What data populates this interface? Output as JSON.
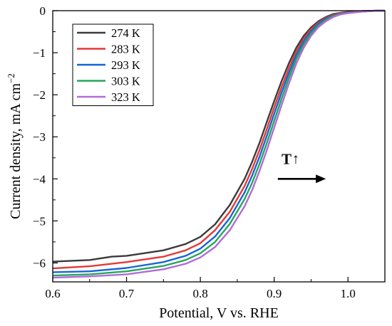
{
  "chart_data": {
    "type": "line",
    "xlabel": "Potential, V vs. RHE",
    "ylabel": "Current density, mA cm",
    "ylabel_sup": "−2",
    "xlim": [
      0.6,
      1.05
    ],
    "ylim": [
      -6.45,
      0
    ],
    "x_ticks": [
      0.6,
      0.7,
      0.8,
      0.9,
      1.0
    ],
    "x_tick_labels": [
      "0.6",
      "0.7",
      "0.8",
      "0.9",
      "1.0"
    ],
    "y_ticks": [
      0,
      -1,
      -2,
      -3,
      -4,
      -5,
      -6
    ],
    "y_tick_labels": [
      "0",
      "−1",
      "−2",
      "−3",
      "−4",
      "−5",
      "−6"
    ],
    "grid": false,
    "legend_position": "top-left",
    "annotation": {
      "text": "T",
      "arrow_up": "↑",
      "at": [
        0.91,
        -3.65
      ]
    },
    "annotation_arrow": {
      "from": [
        0.905,
        -4.0
      ],
      "to": [
        0.97,
        -4.0
      ]
    },
    "series": [
      {
        "name": "274 K",
        "color": "#3b3b3b",
        "x": [
          0.6,
          0.65,
          0.68,
          0.7,
          0.75,
          0.78,
          0.8,
          0.82,
          0.84,
          0.86,
          0.87,
          0.88,
          0.89,
          0.9,
          0.91,
          0.92,
          0.93,
          0.94,
          0.95,
          0.96,
          0.97,
          0.98,
          0.99,
          1.0,
          1.02,
          1.04,
          1.05
        ],
        "y": [
          -5.97,
          -5.93,
          -5.85,
          -5.83,
          -5.7,
          -5.55,
          -5.38,
          -5.08,
          -4.62,
          -4.0,
          -3.6,
          -3.15,
          -2.65,
          -2.15,
          -1.68,
          -1.25,
          -0.88,
          -0.6,
          -0.4,
          -0.25,
          -0.15,
          -0.08,
          -0.05,
          -0.03,
          -0.01,
          0.0,
          0.0
        ]
      },
      {
        "name": "283 K",
        "color": "#e53935",
        "x": [
          0.6,
          0.65,
          0.7,
          0.75,
          0.78,
          0.8,
          0.82,
          0.84,
          0.86,
          0.87,
          0.88,
          0.89,
          0.9,
          0.91,
          0.92,
          0.93,
          0.94,
          0.95,
          0.96,
          0.97,
          0.98,
          0.99,
          1.0,
          1.02,
          1.04,
          1.05
        ],
        "y": [
          -6.13,
          -6.08,
          -5.98,
          -5.85,
          -5.7,
          -5.53,
          -5.22,
          -4.78,
          -4.17,
          -3.77,
          -3.32,
          -2.82,
          -2.3,
          -1.82,
          -1.37,
          -0.97,
          -0.66,
          -0.44,
          -0.28,
          -0.17,
          -0.1,
          -0.06,
          -0.04,
          -0.01,
          0.0,
          0.0
        ]
      },
      {
        "name": "293 K",
        "color": "#1565d8",
        "x": [
          0.6,
          0.65,
          0.7,
          0.75,
          0.78,
          0.8,
          0.82,
          0.84,
          0.86,
          0.87,
          0.88,
          0.89,
          0.9,
          0.91,
          0.92,
          0.93,
          0.94,
          0.95,
          0.96,
          0.97,
          0.98,
          0.99,
          1.0,
          1.02,
          1.04,
          1.05
        ],
        "y": [
          -6.22,
          -6.2,
          -6.12,
          -5.98,
          -5.83,
          -5.66,
          -5.37,
          -4.93,
          -4.32,
          -3.93,
          -3.48,
          -2.98,
          -2.45,
          -1.95,
          -1.48,
          -1.06,
          -0.73,
          -0.49,
          -0.31,
          -0.19,
          -0.12,
          -0.07,
          -0.05,
          -0.02,
          0.0,
          0.0
        ]
      },
      {
        "name": "303 K",
        "color": "#26a65b",
        "x": [
          0.6,
          0.65,
          0.7,
          0.75,
          0.78,
          0.8,
          0.82,
          0.84,
          0.86,
          0.87,
          0.88,
          0.89,
          0.9,
          0.91,
          0.92,
          0.93,
          0.94,
          0.95,
          0.96,
          0.97,
          0.98,
          0.99,
          1.0,
          1.02,
          1.04,
          1.05
        ],
        "y": [
          -6.3,
          -6.27,
          -6.2,
          -6.07,
          -5.93,
          -5.77,
          -5.5,
          -5.07,
          -4.48,
          -4.1,
          -3.65,
          -3.15,
          -2.62,
          -2.1,
          -1.6,
          -1.15,
          -0.8,
          -0.54,
          -0.35,
          -0.22,
          -0.13,
          -0.08,
          -0.05,
          -0.02,
          0.0,
          0.0
        ]
      },
      {
        "name": "323 K",
        "color": "#b36ad9",
        "x": [
          0.6,
          0.65,
          0.7,
          0.75,
          0.78,
          0.8,
          0.82,
          0.84,
          0.86,
          0.87,
          0.88,
          0.89,
          0.9,
          0.91,
          0.92,
          0.93,
          0.94,
          0.95,
          0.96,
          0.97,
          0.98,
          0.99,
          1.0,
          1.02,
          1.04,
          1.05
        ],
        "y": [
          -6.35,
          -6.32,
          -6.27,
          -6.15,
          -6.02,
          -5.87,
          -5.62,
          -5.22,
          -4.65,
          -4.27,
          -3.82,
          -3.32,
          -2.78,
          -2.25,
          -1.73,
          -1.26,
          -0.88,
          -0.6,
          -0.39,
          -0.25,
          -0.15,
          -0.09,
          -0.06,
          -0.02,
          0.0,
          0.0
        ]
      }
    ]
  }
}
